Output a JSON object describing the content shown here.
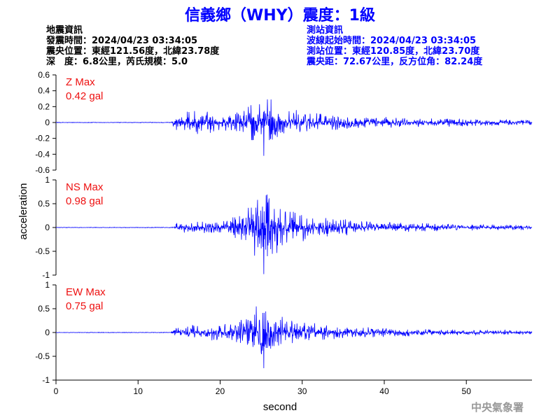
{
  "title": "信義鄉（WHY）震度：1級",
  "event_info": {
    "heading": "地震資訊",
    "origin_time": "發震時間：2024/04/23 03:34:05",
    "epicenter": "震央位置：東經121.56度，北緯23.78度",
    "depth_magnitude": "深　度：6.8公里，芮氏規模：5.0"
  },
  "station_info": {
    "heading": "測站資訊",
    "wave_start": "波線起始時間：2024/04/23 03:34:05",
    "station_location": "測站位置：東經120.85度，北緯23.70度",
    "distance_azimuth": "震央距：72.67公里，反方位角：82.24度"
  },
  "footer": "中央氣象署",
  "colors": {
    "title": "#0000ff",
    "trace": "#0000ff",
    "label": "#ee1111",
    "station_info": "#0000ff"
  },
  "chart_data": {
    "type": "line",
    "xlabel": "second",
    "ylabel": "acceleration",
    "xlim": [
      0,
      58
    ],
    "x_ticks": [
      0,
      10,
      20,
      30,
      40,
      50
    ],
    "grid": false,
    "panels": [
      {
        "name": "Z",
        "label": "Z Max",
        "max_text": "0.42 gal",
        "peak": 0.42,
        "ylim": [
          -0.6,
          0.6
        ],
        "y_ticks": [
          -0.6,
          -0.4,
          -0.2,
          0,
          0.2,
          0.4,
          0.6
        ],
        "y_tick_labels": [
          "-0.6",
          "-0.4",
          "-0.2",
          "0",
          "0.2",
          "0.4",
          "0.6"
        ],
        "envelope": [
          [
            0,
            0.004
          ],
          [
            14.0,
            0.005
          ],
          [
            14.5,
            0.12
          ],
          [
            17,
            0.16
          ],
          [
            20,
            0.12
          ],
          [
            22.5,
            0.14
          ],
          [
            24.5,
            0.34
          ],
          [
            25.3,
            0.42
          ],
          [
            26.5,
            0.28
          ],
          [
            28,
            0.18
          ],
          [
            31,
            0.14
          ],
          [
            35,
            0.1
          ],
          [
            40,
            0.07
          ],
          [
            45,
            0.06
          ],
          [
            50,
            0.05
          ],
          [
            58,
            0.035
          ]
        ]
      },
      {
        "name": "NS",
        "label": "NS Max",
        "max_text": "0.98 gal",
        "peak": 0.98,
        "ylim": [
          -1,
          1
        ],
        "y_ticks": [
          -1,
          -0.5,
          0,
          0.5,
          1
        ],
        "y_tick_labels": [
          "-1",
          "-0.5",
          "0",
          "0.5",
          "1"
        ],
        "envelope": [
          [
            0,
            0.006
          ],
          [
            14.0,
            0.008
          ],
          [
            14.5,
            0.1
          ],
          [
            17,
            0.12
          ],
          [
            20,
            0.16
          ],
          [
            22.5,
            0.3
          ],
          [
            24.5,
            0.7
          ],
          [
            25.3,
            0.98
          ],
          [
            26.5,
            0.6
          ],
          [
            28,
            0.4
          ],
          [
            31,
            0.28
          ],
          [
            35,
            0.18
          ],
          [
            40,
            0.12
          ],
          [
            45,
            0.09
          ],
          [
            50,
            0.07
          ],
          [
            58,
            0.05
          ]
        ]
      },
      {
        "name": "EW",
        "label": "EW Max",
        "max_text": "0.75 gal",
        "peak": 0.75,
        "ylim": [
          -1,
          1
        ],
        "y_ticks": [
          -1,
          -0.5,
          0,
          0.5,
          1
        ],
        "y_tick_labels": [
          "-1",
          "-0.5",
          "0",
          "0.5",
          "1"
        ],
        "envelope": [
          [
            0,
            0.006
          ],
          [
            14.0,
            0.008
          ],
          [
            14.5,
            0.12
          ],
          [
            17,
            0.16
          ],
          [
            20,
            0.18
          ],
          [
            22.5,
            0.3
          ],
          [
            24.5,
            0.6
          ],
          [
            25.3,
            0.75
          ],
          [
            26.5,
            0.45
          ],
          [
            28,
            0.3
          ],
          [
            31,
            0.22
          ],
          [
            35,
            0.15
          ],
          [
            40,
            0.1
          ],
          [
            45,
            0.08
          ],
          [
            50,
            0.06
          ],
          [
            58,
            0.045
          ]
        ]
      }
    ]
  }
}
